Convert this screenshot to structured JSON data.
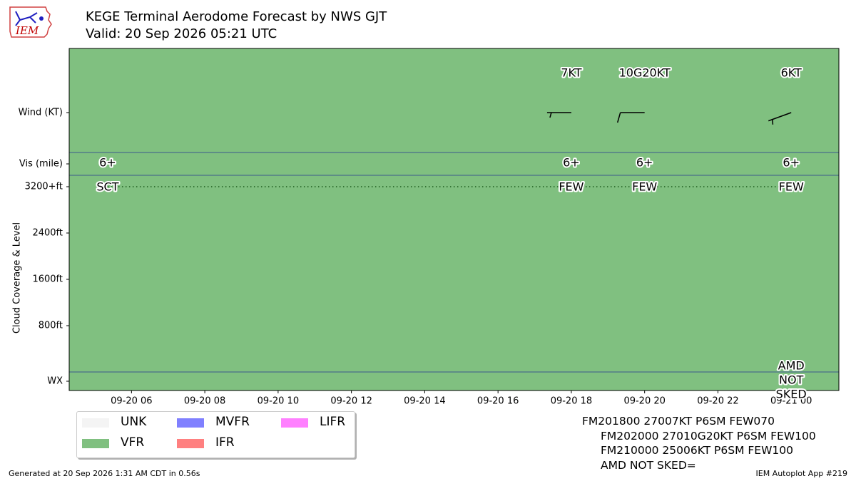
{
  "title": "KEGE Terminal Aerodome Forecast by NWS GJT",
  "subtitle": "Valid: 20 Sep 2026 05:21 UTC",
  "logo_text": "IEM",
  "footer_left": "Generated at 20 Sep 2026 1:31 AM CDT in 0.56s",
  "footer_right": "IEM Autoplot App #219",
  "colors": {
    "background": "#80c080",
    "band_line": "#3c5a8c",
    "unk": "#f4f4f4",
    "vfr": "#80c080",
    "mvfr": "#8080ff",
    "ifr": "#ff8080",
    "lifr": "#ff80ff"
  },
  "legend": [
    {
      "label": "UNK",
      "color": "#f4f4f4"
    },
    {
      "label": "VFR",
      "color": "#80c080"
    },
    {
      "label": "MVFR",
      "color": "#8080ff"
    },
    {
      "label": "IFR",
      "color": "#ff8080"
    },
    {
      "label": "LIFR",
      "color": "#ff80ff"
    }
  ],
  "raw_taf": [
    "FM201800 27007KT P6SM FEW070",
    "FM202000 27010G20KT P6SM FEW100",
    "FM210000 25006KT P6SM FEW100",
    "AMD NOT SKED="
  ],
  "chart_data": {
    "type": "timeline",
    "ylabel": "Cloud Coverage & Level",
    "x_range_hours": [
      4.3,
      25.3
    ],
    "x_ticks": [
      {
        "hour": 6,
        "label": "09-20 06"
      },
      {
        "hour": 8,
        "label": "09-20 08"
      },
      {
        "hour": 10,
        "label": "09-20 10"
      },
      {
        "hour": 12,
        "label": "09-20 12"
      },
      {
        "hour": 14,
        "label": "09-20 14"
      },
      {
        "hour": 16,
        "label": "09-20 16"
      },
      {
        "hour": 18,
        "label": "09-20 18"
      },
      {
        "hour": 20,
        "label": "09-20 20"
      },
      {
        "hour": 22,
        "label": "09-20 22"
      },
      {
        "hour": 24,
        "label": "09-21 00"
      }
    ],
    "row_labels": {
      "wind": "Wind (KT)",
      "vis": "Vis (mile)",
      "cloud_top": "3200+ft",
      "cloud_ticks": [
        "2400ft",
        "1600ft",
        "800ft"
      ],
      "wx": "WX"
    },
    "cloud_tick_values_ft": [
      3200,
      2400,
      1600,
      800
    ],
    "forecasts": [
      {
        "hour": 5.35,
        "vis": "6+",
        "cloud": "SCT",
        "wind_label": "",
        "wind_dir": null,
        "wind_speed": null,
        "gust": null
      },
      {
        "hour": 18,
        "vis": "6+",
        "cloud": "FEW",
        "wind_label": "7KT",
        "wind_dir": 270,
        "wind_speed": 7,
        "gust": null
      },
      {
        "hour": 20,
        "vis": "6+",
        "cloud": "FEW",
        "wind_label": "10G20KT",
        "wind_dir": 270,
        "wind_speed": 10,
        "gust": 20
      },
      {
        "hour": 24,
        "vis": "6+",
        "cloud": "FEW",
        "wind_label": "6KT",
        "wind_dir": 250,
        "wind_speed": 6,
        "gust": null,
        "wx": "AMD\nNOT\nSKED"
      }
    ]
  }
}
